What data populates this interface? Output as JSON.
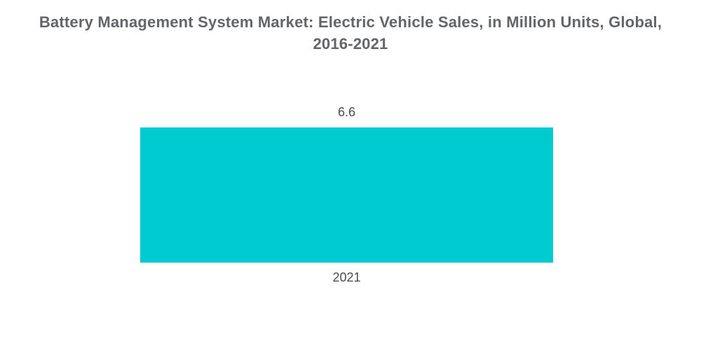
{
  "page": {
    "background_color": "#ffffff"
  },
  "chart_data": {
    "type": "bar",
    "title": "Battery Management System Market: Electric Vehicle Sales, in Million Units, Global, 2016-2021",
    "title_display": "Battery Management System Market: Electric Vehicle Sales, in Million Units, Global,\n2016-2021",
    "categories": [
      "2021"
    ],
    "values": [
      6.6
    ],
    "value_labels": [
      "6.6"
    ],
    "xlabel": "",
    "ylabel": "",
    "units": "Million Units",
    "legend": "none",
    "grid": false,
    "axes_visible": false,
    "bar_color": "#00CBD1",
    "title_color": "#636569",
    "label_color": "#4d4d4d"
  }
}
